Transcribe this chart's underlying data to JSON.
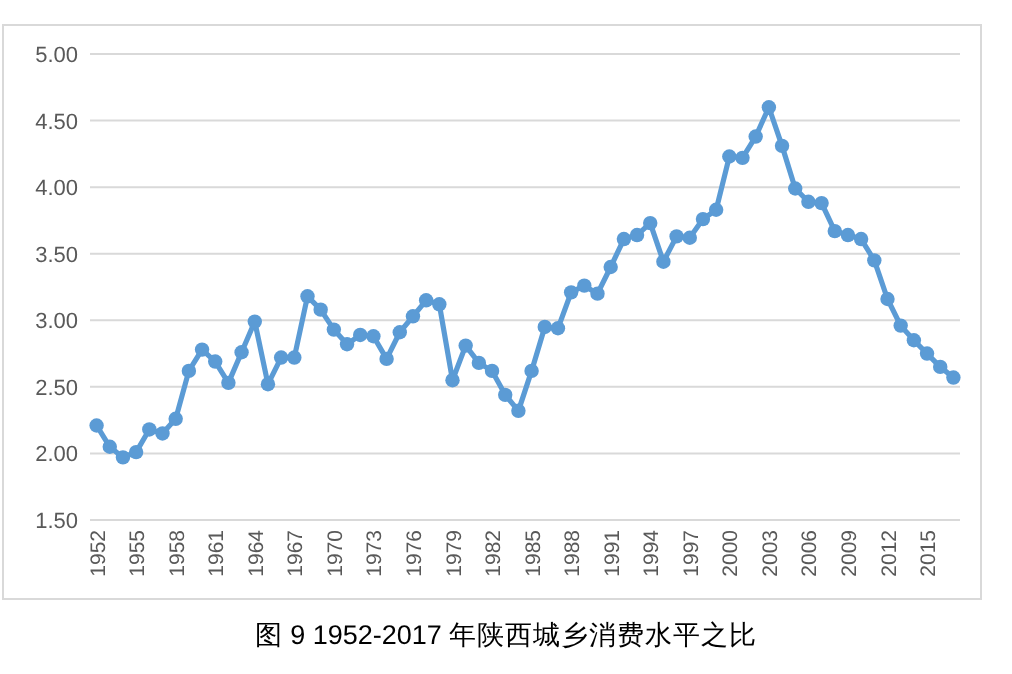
{
  "chart_data": {
    "type": "line",
    "title": "图 9 1952-2017 年陕西城乡消费水平之比",
    "categories": [
      "1952",
      null,
      null,
      "1955",
      null,
      null,
      "1958",
      null,
      null,
      "1961",
      null,
      null,
      "1964",
      null,
      null,
      "1967",
      null,
      null,
      "1970",
      null,
      null,
      "1973",
      null,
      null,
      "1976",
      null,
      null,
      "1979",
      null,
      null,
      "1982",
      null,
      null,
      "1985",
      null,
      null,
      "1988",
      null,
      null,
      "1991",
      null,
      null,
      "1994",
      null,
      null,
      "1997",
      null,
      null,
      "2000",
      null,
      null,
      "2003",
      null,
      null,
      "2006",
      null,
      null,
      "2009",
      null,
      null,
      "2012",
      null,
      null,
      "2015",
      null,
      null
    ],
    "series": [
      {
        "color": "#5b9bd5",
        "values": [
          2.21,
          2.05,
          1.97,
          2.01,
          2.18,
          2.15,
          2.26,
          2.62,
          2.78,
          2.69,
          2.53,
          2.76,
          2.99,
          2.52,
          2.72,
          2.72,
          3.18,
          3.08,
          2.93,
          2.82,
          2.89,
          2.88,
          2.71,
          2.91,
          3.03,
          3.15,
          3.12,
          2.55,
          2.81,
          2.68,
          2.62,
          2.44,
          2.32,
          2.62,
          2.95,
          2.94,
          3.21,
          3.26,
          3.2,
          3.4,
          3.61,
          3.64,
          3.73,
          3.44,
          3.63,
          3.62,
          3.76,
          3.83,
          4.23,
          4.22,
          4.38,
          4.6,
          4.31,
          3.99,
          3.89,
          3.88,
          3.67,
          3.64,
          3.61,
          3.45,
          3.16,
          2.96,
          2.85,
          2.75,
          2.65,
          2.57
        ]
      }
    ],
    "ylim": [
      1.5,
      5
    ],
    "yticks": [
      {
        "value": 1.5,
        "label": "1.50"
      },
      {
        "value": 2,
        "label": "2.00"
      },
      {
        "value": 2.5,
        "label": "2.50"
      },
      {
        "value": 3,
        "label": "3.00"
      },
      {
        "value": 3.5,
        "label": "3.50"
      },
      {
        "value": 4,
        "label": "4.00"
      },
      {
        "value": 4.5,
        "label": "4.50"
      },
      {
        "value": 5,
        "label": "5.00"
      }
    ],
    "grid": "y",
    "marker": "circle",
    "line_style": "solid"
  }
}
